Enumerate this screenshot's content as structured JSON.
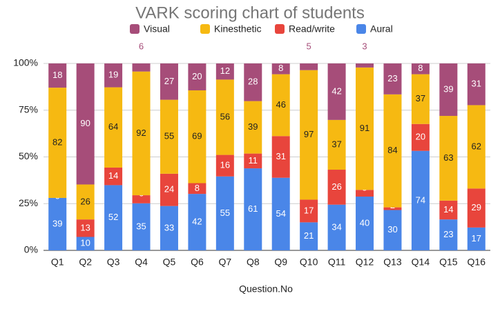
{
  "chart_data": {
    "type": "bar",
    "stacking": "percent",
    "title": "VARK scoring chart of students",
    "x_label": "Question.No",
    "categories": [
      "Q1",
      "Q2",
      "Q3",
      "Q4",
      "Q5",
      "Q6",
      "Q7",
      "Q8",
      "Q9",
      "Q10",
      "Q11",
      "Q12",
      "Q13",
      "Q14",
      "Q15",
      "Q16"
    ],
    "series": [
      {
        "name": "Aural",
        "color": "#4a86e8",
        "values": [
          39,
          10,
          52,
          35,
          33,
          42,
          55,
          61,
          54,
          21,
          34,
          40,
          30,
          74,
          23,
          17
        ]
      },
      {
        "name": "Read/write",
        "color": "#e8453c",
        "values": [
          0,
          13,
          14,
          6,
          24,
          8,
          16,
          11,
          31,
          17,
          26,
          5,
          2,
          20,
          14,
          29
        ]
      },
      {
        "name": "Kinesthetic",
        "color": "#f6b912",
        "values": [
          82,
          26,
          64,
          92,
          55,
          69,
          56,
          39,
          46,
          97,
          37,
          91,
          84,
          37,
          63,
          62
        ]
      },
      {
        "name": "Visual",
        "color": "#a64d79",
        "values": [
          18,
          90,
          19,
          6,
          27,
          20,
          12,
          28,
          8,
          5,
          42,
          3,
          23,
          8,
          39,
          31
        ]
      }
    ],
    "ylim": [
      0,
      100
    ],
    "yticks": [
      {
        "value": 0,
        "label": "0%"
      },
      {
        "value": 25,
        "label": "25%"
      },
      {
        "value": 50,
        "label": "50%"
      },
      {
        "value": 75,
        "label": "75%"
      },
      {
        "value": 100,
        "label": "100%"
      }
    ],
    "grid": true,
    "legend": "top"
  }
}
